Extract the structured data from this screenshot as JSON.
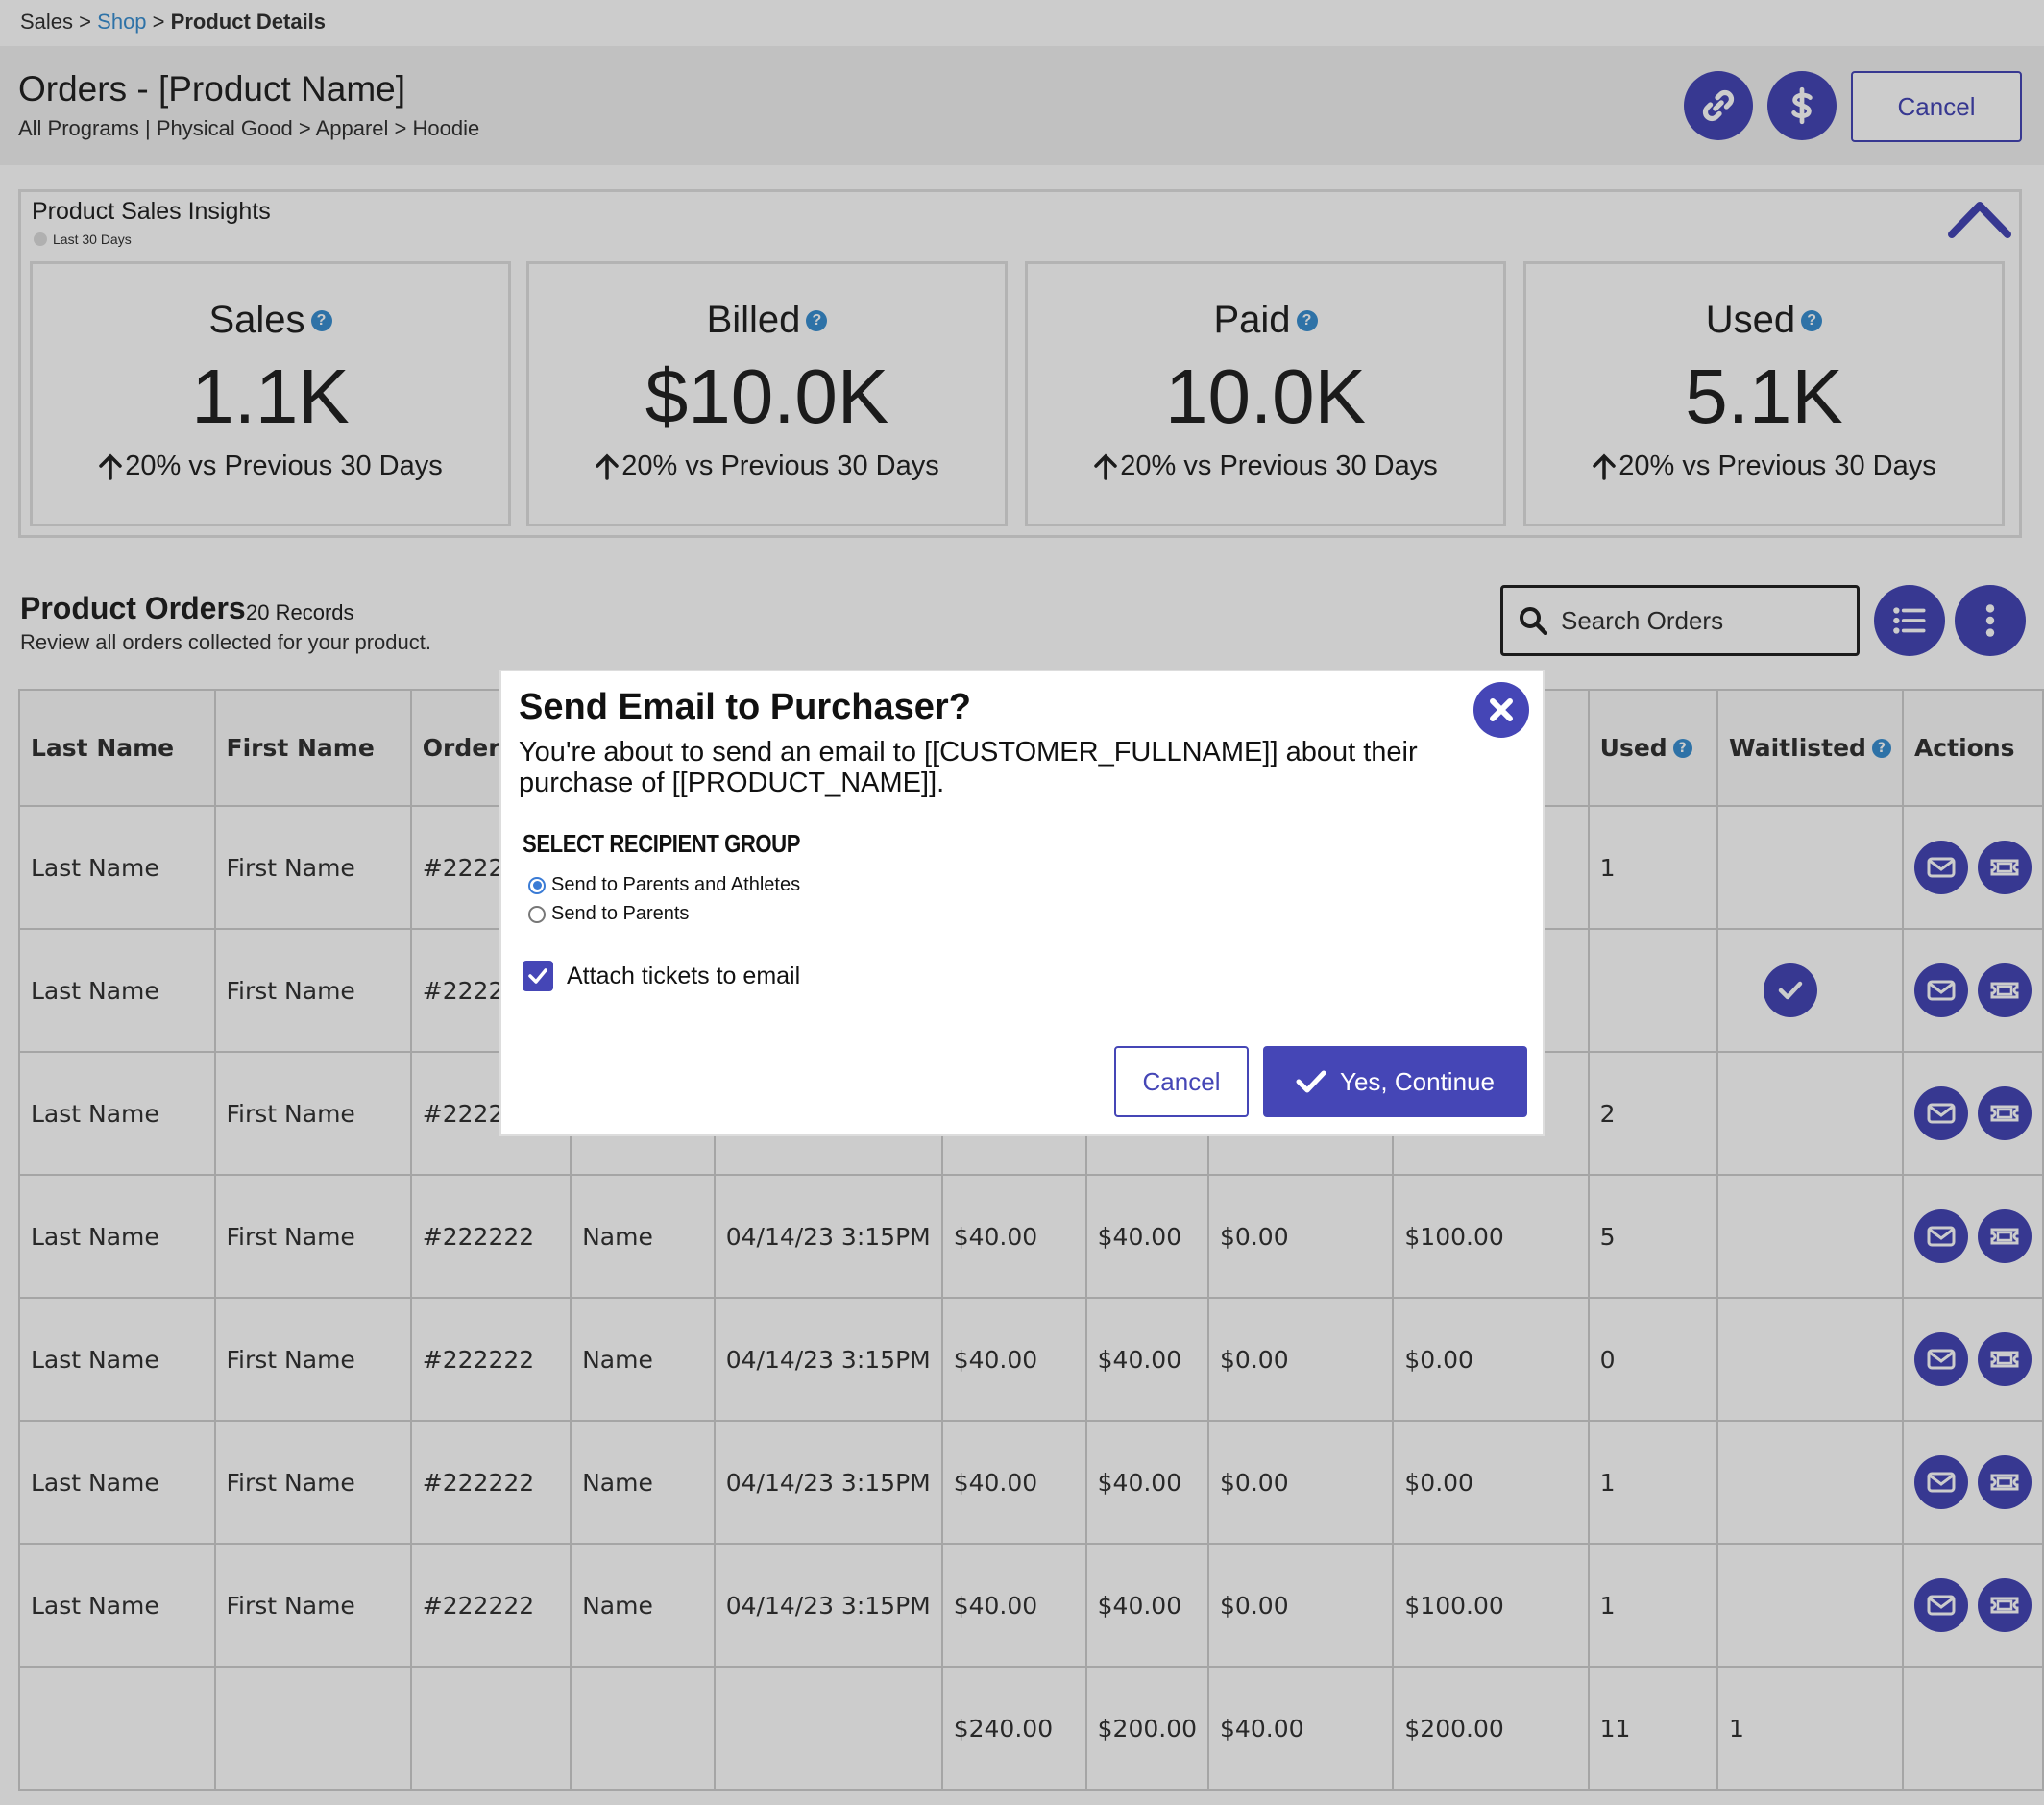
{
  "breadcrumb": {
    "sales": "Sales",
    "sep1": ">",
    "shop": "Shop",
    "sep2": ">",
    "current": "Product Details"
  },
  "header": {
    "title": "Orders - [Product Name]",
    "subtitle": "All Programs | Physical Good > Apparel > Hoodie",
    "link_icon": "link-icon",
    "dollar_icon": "dollar-icon",
    "cancel_label": "Cancel"
  },
  "insights": {
    "title": "Product Sales Insights",
    "range": "Last 30 Days",
    "cards": [
      {
        "label": "Sales",
        "value": "1.1K",
        "change": "20% vs Previous 30 Days"
      },
      {
        "label": "Billed",
        "value": "$10.0K",
        "change": "20% vs Previous 30 Days"
      },
      {
        "label": "Paid",
        "value": "10.0K",
        "change": "20% vs Previous 30 Days"
      },
      {
        "label": "Used",
        "value": "5.1K",
        "change": "20% vs Previous 30 Days"
      }
    ]
  },
  "orders": {
    "title": "Product Orders",
    "count": "20 Records",
    "description": "Review all orders collected for your product.",
    "search_placeholder": "Search Orders",
    "columns": [
      "Last Name",
      "First Name",
      "Order",
      "",
      "",
      "",
      "",
      "",
      "",
      "Used",
      "Waitlisted",
      "Actions"
    ],
    "rows": [
      [
        "Last Name",
        "First Name",
        "#2222",
        "",
        "",
        "",
        "",
        "",
        "",
        "1",
        ""
      ],
      [
        "Last Name",
        "First Name",
        "#2222",
        "",
        "",
        "",
        "",
        "",
        "",
        "",
        "check"
      ],
      [
        "Last Name",
        "First Name",
        "#2222",
        "",
        "",
        "",
        "",
        "",
        "",
        "2",
        ""
      ],
      [
        "Last Name",
        "First Name",
        "#222222",
        "Name",
        "04/14/23 3:15PM",
        "$40.00",
        "$40.00",
        "$0.00",
        "$100.00",
        "5",
        ""
      ],
      [
        "Last Name",
        "First Name",
        "#222222",
        "Name",
        "04/14/23 3:15PM",
        "$40.00",
        "$40.00",
        "$0.00",
        " $0.00",
        "0",
        ""
      ],
      [
        "Last Name",
        "First Name",
        "#222222",
        "Name",
        "04/14/23 3:15PM",
        "$40.00",
        "$40.00",
        "$0.00",
        "$0.00",
        "1",
        ""
      ],
      [
        "Last Name",
        "First Name",
        "#222222",
        "Name",
        "04/14/23 3:15PM",
        "$40.00",
        "$40.00",
        "$0.00",
        "$100.00",
        "1",
        ""
      ]
    ],
    "totals": [
      "",
      "",
      "",
      "",
      "",
      "$240.00",
      "$200.00",
      "$40.00",
      "$200.00",
      "11",
      "1",
      ""
    ]
  },
  "modal": {
    "title": "Send Email to Purchaser?",
    "body": "You're about to send an email to [[CUSTOMER_FULLNAME]] about their purchase of [[PRODUCT_NAME]].",
    "section_label": "Select Recipient Group",
    "options": [
      {
        "label": "Send to Parents and Athletes",
        "selected": true
      },
      {
        "label": "Send to Parents",
        "selected": false
      }
    ],
    "attach_label": "Attach tickets to email",
    "attach_checked": true,
    "cancel_label": "Cancel",
    "confirm_label": "Yes, Continue"
  },
  "colors": {
    "accent": "#4546b6",
    "link": "#3a8fd1",
    "help": "#3a8fd1"
  }
}
